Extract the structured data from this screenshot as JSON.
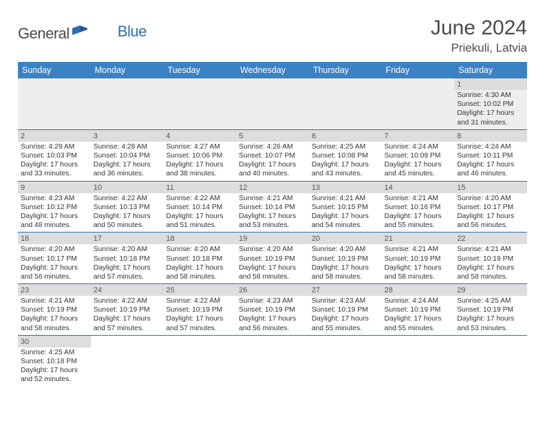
{
  "logo": {
    "word1": "General",
    "word2": "Blue",
    "icon_color": "#2b6fb0"
  },
  "title": "June 2024",
  "location": "Priekuli, Latvia",
  "colors": {
    "header_bg": "#3b82c4",
    "header_text": "#ffffff",
    "daynum_bg": "#dddddd",
    "row_border": "#2b6fb0",
    "first_row_bg": "#eeeeee",
    "text": "#333333"
  },
  "day_headers": [
    "Sunday",
    "Monday",
    "Tuesday",
    "Wednesday",
    "Thursday",
    "Friday",
    "Saturday"
  ],
  "weeks": [
    [
      null,
      null,
      null,
      null,
      null,
      null,
      {
        "n": "1",
        "sr": "Sunrise: 4:30 AM",
        "ss": "Sunset: 10:02 PM",
        "d1": "Daylight: 17 hours",
        "d2": "and 31 minutes."
      }
    ],
    [
      {
        "n": "2",
        "sr": "Sunrise: 4:29 AM",
        "ss": "Sunset: 10:03 PM",
        "d1": "Daylight: 17 hours",
        "d2": "and 33 minutes."
      },
      {
        "n": "3",
        "sr": "Sunrise: 4:28 AM",
        "ss": "Sunset: 10:04 PM",
        "d1": "Daylight: 17 hours",
        "d2": "and 36 minutes."
      },
      {
        "n": "4",
        "sr": "Sunrise: 4:27 AM",
        "ss": "Sunset: 10:06 PM",
        "d1": "Daylight: 17 hours",
        "d2": "and 38 minutes."
      },
      {
        "n": "5",
        "sr": "Sunrise: 4:26 AM",
        "ss": "Sunset: 10:07 PM",
        "d1": "Daylight: 17 hours",
        "d2": "and 40 minutes."
      },
      {
        "n": "6",
        "sr": "Sunrise: 4:25 AM",
        "ss": "Sunset: 10:08 PM",
        "d1": "Daylight: 17 hours",
        "d2": "and 43 minutes."
      },
      {
        "n": "7",
        "sr": "Sunrise: 4:24 AM",
        "ss": "Sunset: 10:09 PM",
        "d1": "Daylight: 17 hours",
        "d2": "and 45 minutes."
      },
      {
        "n": "8",
        "sr": "Sunrise: 4:24 AM",
        "ss": "Sunset: 10:11 PM",
        "d1": "Daylight: 17 hours",
        "d2": "and 46 minutes."
      }
    ],
    [
      {
        "n": "9",
        "sr": "Sunrise: 4:23 AM",
        "ss": "Sunset: 10:12 PM",
        "d1": "Daylight: 17 hours",
        "d2": "and 48 minutes."
      },
      {
        "n": "10",
        "sr": "Sunrise: 4:22 AM",
        "ss": "Sunset: 10:13 PM",
        "d1": "Daylight: 17 hours",
        "d2": "and 50 minutes."
      },
      {
        "n": "11",
        "sr": "Sunrise: 4:22 AM",
        "ss": "Sunset: 10:14 PM",
        "d1": "Daylight: 17 hours",
        "d2": "and 51 minutes."
      },
      {
        "n": "12",
        "sr": "Sunrise: 4:21 AM",
        "ss": "Sunset: 10:14 PM",
        "d1": "Daylight: 17 hours",
        "d2": "and 53 minutes."
      },
      {
        "n": "13",
        "sr": "Sunrise: 4:21 AM",
        "ss": "Sunset: 10:15 PM",
        "d1": "Daylight: 17 hours",
        "d2": "and 54 minutes."
      },
      {
        "n": "14",
        "sr": "Sunrise: 4:21 AM",
        "ss": "Sunset: 10:16 PM",
        "d1": "Daylight: 17 hours",
        "d2": "and 55 minutes."
      },
      {
        "n": "15",
        "sr": "Sunrise: 4:20 AM",
        "ss": "Sunset: 10:17 PM",
        "d1": "Daylight: 17 hours",
        "d2": "and 56 minutes."
      }
    ],
    [
      {
        "n": "16",
        "sr": "Sunrise: 4:20 AM",
        "ss": "Sunset: 10:17 PM",
        "d1": "Daylight: 17 hours",
        "d2": "and 56 minutes."
      },
      {
        "n": "17",
        "sr": "Sunrise: 4:20 AM",
        "ss": "Sunset: 10:18 PM",
        "d1": "Daylight: 17 hours",
        "d2": "and 57 minutes."
      },
      {
        "n": "18",
        "sr": "Sunrise: 4:20 AM",
        "ss": "Sunset: 10:18 PM",
        "d1": "Daylight: 17 hours",
        "d2": "and 58 minutes."
      },
      {
        "n": "19",
        "sr": "Sunrise: 4:20 AM",
        "ss": "Sunset: 10:19 PM",
        "d1": "Daylight: 17 hours",
        "d2": "and 58 minutes."
      },
      {
        "n": "20",
        "sr": "Sunrise: 4:20 AM",
        "ss": "Sunset: 10:19 PM",
        "d1": "Daylight: 17 hours",
        "d2": "and 58 minutes."
      },
      {
        "n": "21",
        "sr": "Sunrise: 4:21 AM",
        "ss": "Sunset: 10:19 PM",
        "d1": "Daylight: 17 hours",
        "d2": "and 58 minutes."
      },
      {
        "n": "22",
        "sr": "Sunrise: 4:21 AM",
        "ss": "Sunset: 10:19 PM",
        "d1": "Daylight: 17 hours",
        "d2": "and 58 minutes."
      }
    ],
    [
      {
        "n": "23",
        "sr": "Sunrise: 4:21 AM",
        "ss": "Sunset: 10:19 PM",
        "d1": "Daylight: 17 hours",
        "d2": "and 58 minutes."
      },
      {
        "n": "24",
        "sr": "Sunrise: 4:22 AM",
        "ss": "Sunset: 10:19 PM",
        "d1": "Daylight: 17 hours",
        "d2": "and 57 minutes."
      },
      {
        "n": "25",
        "sr": "Sunrise: 4:22 AM",
        "ss": "Sunset: 10:19 PM",
        "d1": "Daylight: 17 hours",
        "d2": "and 57 minutes."
      },
      {
        "n": "26",
        "sr": "Sunrise: 4:23 AM",
        "ss": "Sunset: 10:19 PM",
        "d1": "Daylight: 17 hours",
        "d2": "and 56 minutes."
      },
      {
        "n": "27",
        "sr": "Sunrise: 4:23 AM",
        "ss": "Sunset: 10:19 PM",
        "d1": "Daylight: 17 hours",
        "d2": "and 55 minutes."
      },
      {
        "n": "28",
        "sr": "Sunrise: 4:24 AM",
        "ss": "Sunset: 10:19 PM",
        "d1": "Daylight: 17 hours",
        "d2": "and 55 minutes."
      },
      {
        "n": "29",
        "sr": "Sunrise: 4:25 AM",
        "ss": "Sunset: 10:19 PM",
        "d1": "Daylight: 17 hours",
        "d2": "and 53 minutes."
      }
    ],
    [
      {
        "n": "30",
        "sr": "Sunrise: 4:25 AM",
        "ss": "Sunset: 10:18 PM",
        "d1": "Daylight: 17 hours",
        "d2": "and 52 minutes."
      },
      null,
      null,
      null,
      null,
      null,
      null
    ]
  ]
}
